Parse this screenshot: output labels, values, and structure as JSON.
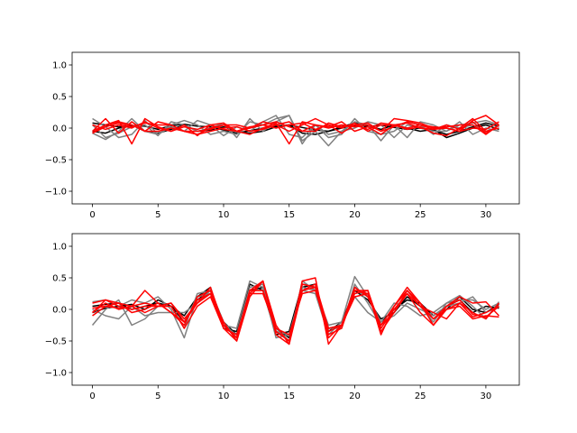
{
  "chart_data": [
    {
      "type": "line",
      "title": "",
      "xlabel": "",
      "ylabel": "",
      "xlim": [
        -1.55,
        32.55
      ],
      "ylim": [
        -1.2,
        1.2
      ],
      "xticks": [
        0,
        5,
        10,
        15,
        20,
        25,
        30
      ],
      "yticks": [
        -1.0,
        -0.5,
        0.0,
        0.5,
        1.0
      ],
      "xtick_labels": [
        "0",
        "5",
        "10",
        "15",
        "20",
        "25",
        "30"
      ],
      "ytick_labels": [
        "−1.0",
        "−0.5",
        "0.0",
        "0.5",
        "1.0"
      ],
      "grid": false,
      "series": [
        {
          "color": "#000000",
          "values": [
            0.08,
            0.05,
            0.02,
            0.04,
            0.03,
            -0.02,
            0.04,
            0.06,
            0.03,
            0.02,
            -0.03,
            -0.08,
            -0.04,
            0.0,
            0.03,
            0.05,
            0.01,
            -0.03,
            -0.05,
            0.0,
            0.04,
            0.02,
            0.05,
            0.01,
            -0.02,
            0.0,
            -0.03,
            -0.1,
            -0.05,
            0.02,
            0.08,
            0.03
          ]
        },
        {
          "color": "#000000",
          "values": [
            -0.05,
            -0.08,
            0.0,
            0.05,
            -0.05,
            -0.08,
            -0.02,
            0.05,
            -0.05,
            -0.03,
            0.02,
            -0.05,
            -0.08,
            -0.05,
            0.02,
            0.05,
            -0.08,
            -0.1,
            -0.05,
            0.02,
            0.08,
            0.03,
            -0.02,
            0.05,
            0.0,
            -0.05,
            -0.02,
            -0.15,
            -0.08,
            0.0,
            0.05,
            -0.02
          ]
        },
        {
          "color": "#808080",
          "values": [
            0.15,
            0.02,
            -0.15,
            -0.1,
            0.12,
            -0.1,
            0.05,
            0.12,
            0.05,
            -0.1,
            -0.05,
            -0.1,
            0.1,
            0.05,
            0.15,
            0.2,
            -0.2,
            -0.05,
            -0.28,
            -0.05,
            0.1,
            0.05,
            -0.2,
            0.05,
            -0.15,
            0.1,
            0.05,
            -0.05,
            0.05,
            0.08,
            0.12,
            0.05
          ]
        },
        {
          "color": "#808080",
          "values": [
            -0.08,
            -0.18,
            -0.05,
            0.15,
            -0.05,
            -0.1,
            0.02,
            -0.05,
            0.12,
            0.05,
            -0.12,
            0.02,
            -0.05,
            0.1,
            0.2,
            -0.1,
            -0.15,
            0.05,
            -0.1,
            -0.05,
            0.0,
            0.1,
            0.05,
            -0.15,
            0.05,
            0.0,
            -0.05,
            -0.05,
            0.1,
            -0.1,
            0.0,
            -0.05
          ]
        },
        {
          "color": "#808080",
          "values": [
            0.05,
            -0.15,
            -0.08,
            0.02,
            0.05,
            -0.12,
            0.1,
            0.05,
            -0.05,
            0.0,
            0.08,
            -0.15,
            0.15,
            -0.05,
            0.1,
            0.2,
            -0.25,
            0.05,
            -0.15,
            -0.1,
            0.15,
            -0.05,
            -0.1,
            -0.05,
            0.1,
            0.05,
            -0.1,
            0.05,
            0.0,
            0.05,
            -0.05,
            0.0
          ]
        },
        {
          "color": "#ff0000",
          "values": [
            -0.05,
            0.15,
            -0.08,
            0.1,
            -0.05,
            0.1,
            0.05,
            -0.05,
            -0.1,
            0.0,
            0.05,
            -0.05,
            0.0,
            0.1,
            0.05,
            -0.05,
            0.05,
            0.15,
            0.05,
            -0.08,
            0.05,
            0.08,
            -0.05,
            0.02,
            0.1,
            0.05,
            -0.02,
            0.0,
            -0.05,
            0.12,
            0.2,
            0.05
          ]
        },
        {
          "color": "#ff0000",
          "values": [
            -0.08,
            0.05,
            0.12,
            -0.25,
            0.15,
            0.02,
            -0.05,
            0.05,
            -0.12,
            0.05,
            0.08,
            -0.05,
            -0.1,
            0.0,
            0.08,
            -0.25,
            0.1,
            0.05,
            0.02,
            0.1,
            -0.05,
            0.02,
            -0.1,
            0.05,
            -0.02,
            0.02,
            -0.08,
            -0.12,
            0.0,
            0.15,
            -0.05,
            0.0
          ]
        },
        {
          "color": "#ff0000",
          "values": [
            -0.05,
            0.05,
            0.1,
            0.05,
            -0.05,
            -0.05,
            0.0,
            -0.05,
            -0.05,
            -0.02,
            0.05,
            0.05,
            0.0,
            0.05,
            0.0,
            0.05,
            0.08,
            -0.02,
            0.05,
            0.0,
            0.08,
            -0.05,
            0.05,
            0.05,
            0.08,
            0.0,
            -0.02,
            0.05,
            -0.02,
            0.1,
            -0.08,
            0.05
          ]
        },
        {
          "color": "#ff0000",
          "values": [
            -0.08,
            0.02,
            0.08,
            0.02,
            0.08,
            0.05,
            0.05,
            -0.05,
            -0.1,
            -0.05,
            0.0,
            0.02,
            -0.05,
            -0.02,
            0.05,
            0.1,
            -0.05,
            -0.05,
            0.08,
            0.02,
            0.05,
            -0.02,
            0.08,
            0.05,
            0.0,
            0.05,
            0.02,
            0.0,
            -0.05,
            0.0,
            -0.02,
            0.1
          ]
        },
        {
          "color": "#ff0000",
          "values": [
            0.05,
            -0.02,
            0.05,
            0.0,
            0.1,
            0.0,
            -0.05,
            0.02,
            -0.02,
            0.05,
            -0.02,
            -0.05,
            0.02,
            0.05,
            0.1,
            0.02,
            -0.05,
            0.05,
            0.0,
            0.05,
            0.02,
            0.05,
            -0.05,
            0.15,
            0.12,
            0.08,
            0.0,
            0.02,
            0.05,
            0.05,
            -0.1,
            0.05
          ]
        }
      ]
    },
    {
      "type": "line",
      "title": "",
      "xlabel": "",
      "ylabel": "",
      "xlim": [
        -1.55,
        32.55
      ],
      "ylim": [
        -1.2,
        1.2
      ],
      "xticks": [
        0,
        5,
        10,
        15,
        20,
        25,
        30
      ],
      "yticks": [
        -1.0,
        -0.5,
        0.0,
        0.5,
        1.0
      ],
      "xtick_labels": [
        "0",
        "5",
        "10",
        "15",
        "20",
        "25",
        "30"
      ],
      "ytick_labels": [
        "−1.0",
        "−0.5",
        "0.0",
        "0.5",
        "1.0"
      ],
      "grid": false,
      "series": [
        {
          "color": "#000000",
          "values": [
            0.05,
            0.08,
            0.1,
            0.0,
            0.05,
            0.1,
            0.05,
            -0.2,
            0.15,
            0.3,
            -0.2,
            -0.4,
            0.3,
            0.35,
            -0.3,
            -0.45,
            0.35,
            0.4,
            -0.35,
            -0.2,
            0.3,
            0.15,
            -0.15,
            -0.05,
            0.2,
            0.05,
            -0.15,
            0.0,
            0.2,
            0.0,
            -0.05,
            0.08
          ]
        },
        {
          "color": "#000000",
          "values": [
            -0.05,
            0.02,
            0.05,
            0.08,
            0.0,
            0.15,
            0.05,
            -0.1,
            0.2,
            0.35,
            -0.3,
            -0.35,
            0.4,
            0.3,
            -0.4,
            -0.35,
            0.4,
            0.35,
            -0.3,
            -0.25,
            0.35,
            0.2,
            -0.2,
            0.0,
            0.15,
            0.1,
            -0.1,
            0.05,
            0.15,
            -0.05,
            0.05,
            0.02
          ]
        },
        {
          "color": "#808080",
          "values": [
            0.12,
            0.15,
            0.05,
            0.15,
            0.1,
            0.2,
            0.0,
            -0.45,
            0.2,
            0.25,
            -0.25,
            -0.3,
            0.45,
            0.35,
            -0.45,
            -0.4,
            0.3,
            0.25,
            -0.4,
            -0.2,
            0.52,
            0.2,
            -0.2,
            0.1,
            0.05,
            -0.1,
            -0.05,
            0.1,
            0.22,
            0.05,
            -0.15,
            0.12
          ]
        },
        {
          "color": "#808080",
          "values": [
            -0.25,
            0.0,
            0.15,
            -0.25,
            -0.15,
            0.05,
            0.05,
            -0.3,
            0.25,
            0.3,
            -0.2,
            -0.45,
            0.3,
            0.3,
            -0.3,
            -0.5,
            0.45,
            0.3,
            -0.3,
            -0.3,
            0.4,
            0.1,
            -0.25,
            0.05,
            0.3,
            0.05,
            -0.2,
            0.1,
            0.15,
            0.15,
            0.0,
            0.1
          ]
        },
        {
          "color": "#808080",
          "values": [
            0.0,
            -0.1,
            -0.15,
            0.05,
            -0.1,
            -0.05,
            -0.05,
            -0.05,
            0.1,
            0.3,
            -0.25,
            -0.4,
            0.35,
            0.4,
            -0.35,
            -0.4,
            0.35,
            0.3,
            -0.25,
            -0.2,
            0.2,
            -0.05,
            -0.2,
            -0.1,
            0.1,
            0.0,
            -0.1,
            0.05,
            0.1,
            0.2,
            -0.05,
            0.05
          ]
        },
        {
          "color": "#ff0000",
          "values": [
            -0.05,
            0.15,
            0.1,
            -0.05,
            0.0,
            0.1,
            -0.05,
            -0.25,
            0.2,
            0.3,
            -0.3,
            -0.5,
            0.25,
            0.45,
            -0.4,
            -0.55,
            0.45,
            0.5,
            -0.55,
            -0.25,
            0.3,
            0.3,
            -0.4,
            0.05,
            0.35,
            0.1,
            -0.25,
            0.05,
            0.2,
            0.1,
            0.12,
            -0.1
          ]
        },
        {
          "color": "#ff0000",
          "values": [
            0.1,
            0.15,
            0.05,
            0.0,
            0.05,
            0.05,
            0.1,
            -0.2,
            0.15,
            0.25,
            -0.25,
            -0.45,
            0.3,
            0.45,
            -0.25,
            -0.55,
            0.3,
            0.35,
            -0.45,
            -0.25,
            0.25,
            0.3,
            -0.3,
            0.0,
            0.25,
            0.05,
            -0.05,
            -0.15,
            0.1,
            -0.12,
            -0.05,
            0.05
          ]
        },
        {
          "color": "#ff0000",
          "values": [
            0.02,
            0.05,
            0.02,
            0.05,
            -0.05,
            0.05,
            0.1,
            -0.15,
            0.1,
            0.35,
            -0.25,
            -0.45,
            0.3,
            0.3,
            -0.35,
            -0.5,
            0.4,
            0.35,
            -0.4,
            -0.3,
            0.3,
            0.25,
            -0.25,
            0.05,
            0.3,
            0.1,
            -0.15,
            0.0,
            0.1,
            -0.05,
            -0.15,
            0.1
          ]
        },
        {
          "color": "#ff0000",
          "values": [
            -0.1,
            0.05,
            0.1,
            0.05,
            0.1,
            0.05,
            0.05,
            -0.3,
            0.05,
            0.2,
            -0.3,
            -0.4,
            0.25,
            0.25,
            -0.3,
            -0.4,
            0.25,
            0.3,
            -0.35,
            -0.25,
            0.2,
            0.25,
            -0.35,
            -0.05,
            0.25,
            -0.05,
            -0.25,
            0.0,
            0.05,
            -0.15,
            -0.1,
            -0.12
          ]
        },
        {
          "color": "#ff0000",
          "values": [
            -0.05,
            0.1,
            0.0,
            0.05,
            0.3,
            0.1,
            -0.05,
            -0.2,
            0.1,
            0.25,
            -0.2,
            -0.5,
            0.2,
            0.45,
            -0.35,
            -0.5,
            0.3,
            0.4,
            -0.3,
            -0.25,
            0.35,
            0.2,
            -0.25,
            -0.05,
            0.3,
            0.05,
            -0.15,
            0.05,
            0.15,
            -0.08,
            -0.12,
            0.05
          ]
        }
      ]
    }
  ]
}
